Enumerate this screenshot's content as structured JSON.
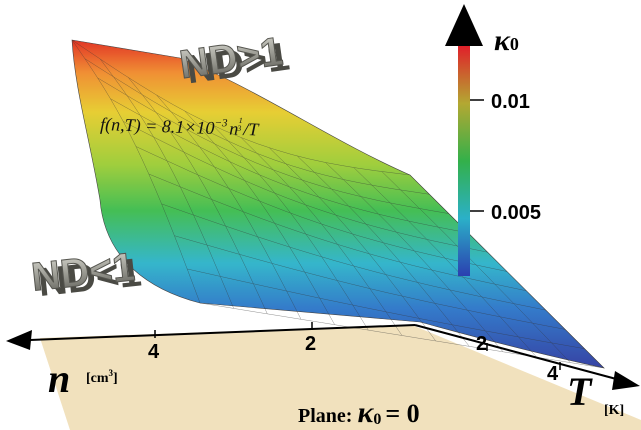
{
  "chart_data": {
    "type": "surface",
    "title": "",
    "z_axis": {
      "label_symbol": "κ",
      "label_subscript": "0",
      "ticks": [
        {
          "value": 0.01,
          "label": "0.01"
        },
        {
          "value": 0.005,
          "label": "0.005"
        }
      ],
      "range": [
        0,
        0.012
      ],
      "colors": [
        "#1f3aa8",
        "#2aa6d6",
        "#30b15a",
        "#c9d331",
        "#f08a2a",
        "#e02a1a"
      ]
    },
    "n_axis": {
      "label": "n",
      "unit": "[cm",
      "unit_sup": "3",
      "unit_close": "]",
      "ticks": [
        {
          "value": 4,
          "label": "4"
        },
        {
          "value": 2,
          "label": "2"
        }
      ]
    },
    "t_axis": {
      "label": "T",
      "unit": "[K]",
      "ticks": [
        {
          "value": 2,
          "label": "2"
        },
        {
          "value": 4,
          "label": "4"
        }
      ]
    },
    "formula": {
      "lhs": "f(n,T) = 8.1×10",
      "exp": "−3",
      "n": "n",
      "n_exp_num": "1",
      "n_exp_den": "3",
      "tail": "/T"
    },
    "labels_3d": [
      {
        "text": "ND>1"
      },
      {
        "text": "ND<1"
      }
    ],
    "plane": {
      "prefix": "Plane:",
      "symbol": "κ",
      "subscript": "0",
      "equation": "= 0"
    }
  }
}
